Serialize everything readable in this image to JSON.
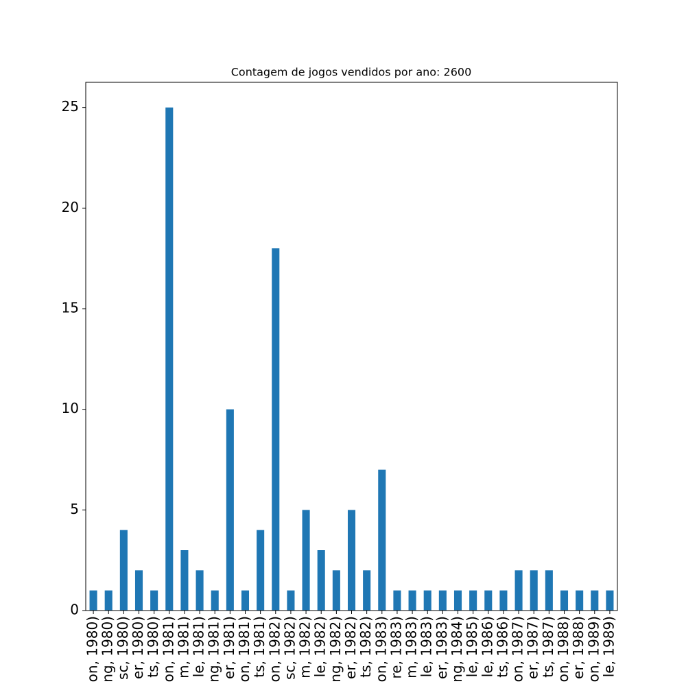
{
  "chart_data": {
    "type": "bar",
    "title": "Contagem de jogos vendidos por ano: 2600",
    "categories": [
      "on, 1980)",
      "ng, 1980)",
      "sc, 1980)",
      "er, 1980)",
      "ts, 1980)",
      "on, 1981)",
      "m, 1981)",
      "le, 1981)",
      "ng, 1981)",
      "er, 1981)",
      "on, 1981)",
      "ts, 1981)",
      "on, 1982)",
      "sc, 1982)",
      "m, 1982)",
      "le, 1982)",
      "ng, 1982)",
      "er, 1982)",
      "ts, 1982)",
      "on, 1983)",
      "re, 1983)",
      "m, 1983)",
      "le, 1983)",
      "er, 1983)",
      "ng, 1984)",
      "le, 1985)",
      "le, 1986)",
      "ts, 1986)",
      "on, 1987)",
      "er, 1987)",
      "ts, 1987)",
      "on, 1988)",
      "er, 1988)",
      "on, 1989)",
      "le, 1989)"
    ],
    "values": [
      1,
      1,
      4,
      2,
      1,
      25,
      3,
      2,
      1,
      10,
      1,
      4,
      18,
      1,
      5,
      3,
      2,
      5,
      2,
      7,
      1,
      1,
      1,
      1,
      1,
      1,
      1,
      1,
      2,
      2,
      2,
      1,
      1,
      1,
      1
    ],
    "color": "#1f77b4",
    "ylim": [
      0,
      26.25
    ],
    "yticks": [
      0,
      5,
      10,
      15,
      20,
      25
    ],
    "grid": false
  }
}
